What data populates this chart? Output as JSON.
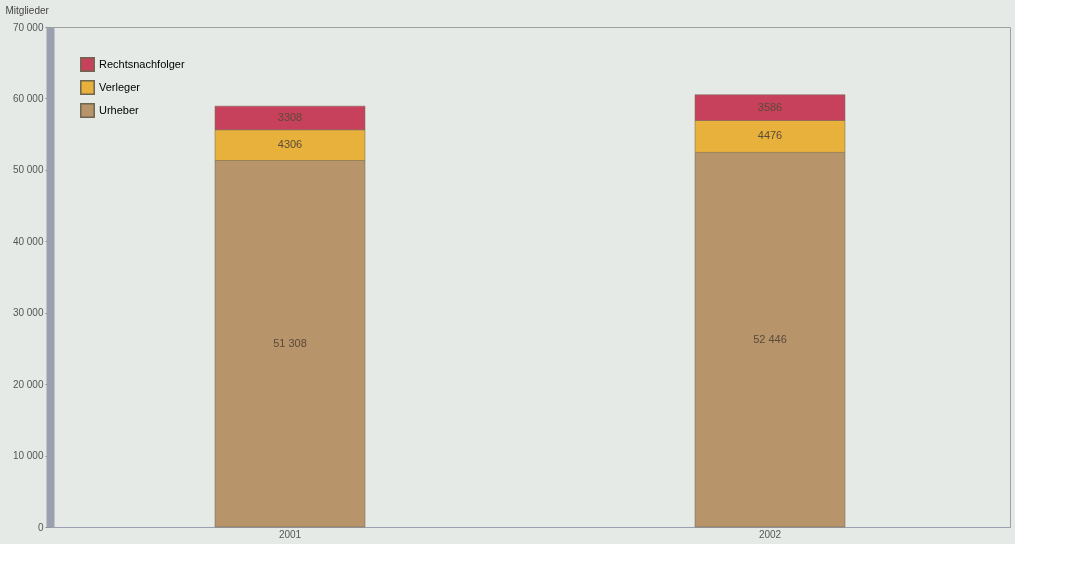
{
  "chart_data": {
    "type": "bar",
    "stacked": true,
    "ylabel": "Mitglieder",
    "categories": [
      "2001",
      "2002"
    ],
    "series": [
      {
        "name": "Urheber",
        "color": "#b8946a",
        "values": [
          51308,
          52446
        ],
        "value_labels": [
          "51 308",
          "52 446"
        ]
      },
      {
        "name": "Verleger",
        "color": "#e8b13c",
        "values": [
          4306,
          4476
        ],
        "value_labels": [
          "4306",
          "4476"
        ]
      },
      {
        "name": "Rechtsnachfolger",
        "color": "#c8415c",
        "values": [
          3308,
          3586
        ],
        "value_labels": [
          "3308",
          "3586"
        ]
      }
    ],
    "ylim": [
      0,
      70000
    ],
    "yticks": [
      0,
      {
        "value": 10000,
        "label": "10 000"
      },
      {
        "value": 20000,
        "label": "20 000"
      },
      {
        "value": 30000,
        "label": "30 000"
      },
      {
        "value": 40000,
        "label": "40 000"
      },
      {
        "value": 50000,
        "label": "50 000"
      },
      {
        "value": 60000,
        "label": "60 000"
      },
      {
        "value": 70000,
        "label": "70 000"
      }
    ],
    "grid": false,
    "legend": "top left"
  }
}
